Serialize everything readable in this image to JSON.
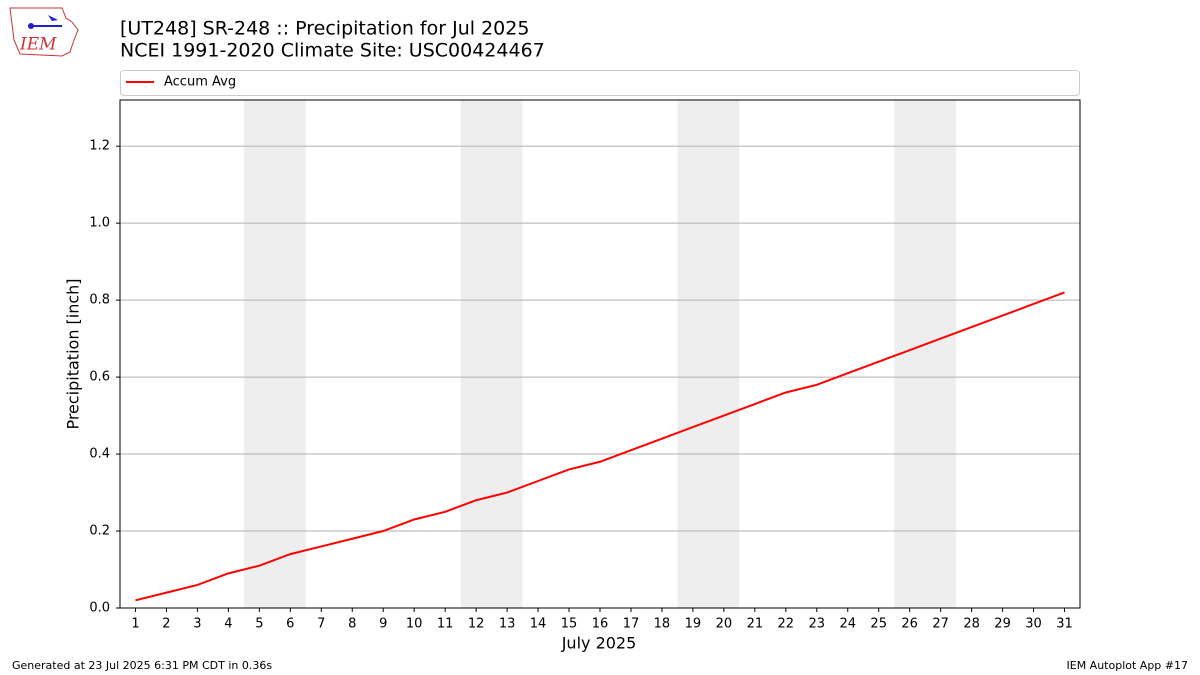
{
  "logo_text": "IEM",
  "footer_left": "Generated at 23 Jul 2025 6:31 PM CDT in 0.36s",
  "footer_right": "IEM Autoplot App #17",
  "chart_data": {
    "type": "line",
    "title": "[UT248] SR-248  :: Precipitation for Jul 2025",
    "subtitle": "NCEI 1991-2020 Climate Site: USC00424467",
    "x_label": "July 2025",
    "y_label": "Precipitation [inch]",
    "x": [
      1,
      2,
      3,
      4,
      5,
      6,
      7,
      8,
      9,
      10,
      11,
      12,
      13,
      14,
      15,
      16,
      17,
      18,
      19,
      20,
      21,
      22,
      23,
      24,
      25,
      26,
      27,
      28,
      29,
      30,
      31
    ],
    "series": [
      {
        "name": "Accum Avg",
        "color": "#ff0000",
        "values": [
          0.02,
          0.04,
          0.06,
          0.09,
          0.11,
          0.14,
          0.16,
          0.18,
          0.2,
          0.23,
          0.25,
          0.28,
          0.3,
          0.33,
          0.36,
          0.38,
          0.41,
          0.44,
          0.47,
          0.5,
          0.53,
          0.56,
          0.58,
          0.61,
          0.64,
          0.67,
          0.7,
          0.73,
          0.76,
          0.79,
          0.82
        ]
      }
    ],
    "xlim": [
      0.5,
      31.5
    ],
    "xticks": [
      1,
      2,
      3,
      4,
      5,
      6,
      7,
      8,
      9,
      10,
      11,
      12,
      13,
      14,
      15,
      16,
      17,
      18,
      19,
      20,
      21,
      22,
      23,
      24,
      25,
      26,
      27,
      28,
      29,
      30,
      31
    ],
    "ylim": [
      0,
      1.32
    ],
    "yticks": [
      {
        "value": 0,
        "label": "0.0"
      },
      0.2,
      0.4,
      0.6,
      0.8,
      {
        "value": 1,
        "label": "1.0"
      },
      1.2
    ],
    "grid": "y",
    "legend": "top",
    "shaded_spans": [
      [
        4.5,
        6.5
      ],
      [
        11.5,
        13.5
      ],
      [
        18.5,
        20.5
      ],
      [
        25.5,
        27.5
      ]
    ],
    "shade_color": "#eeeeee"
  }
}
